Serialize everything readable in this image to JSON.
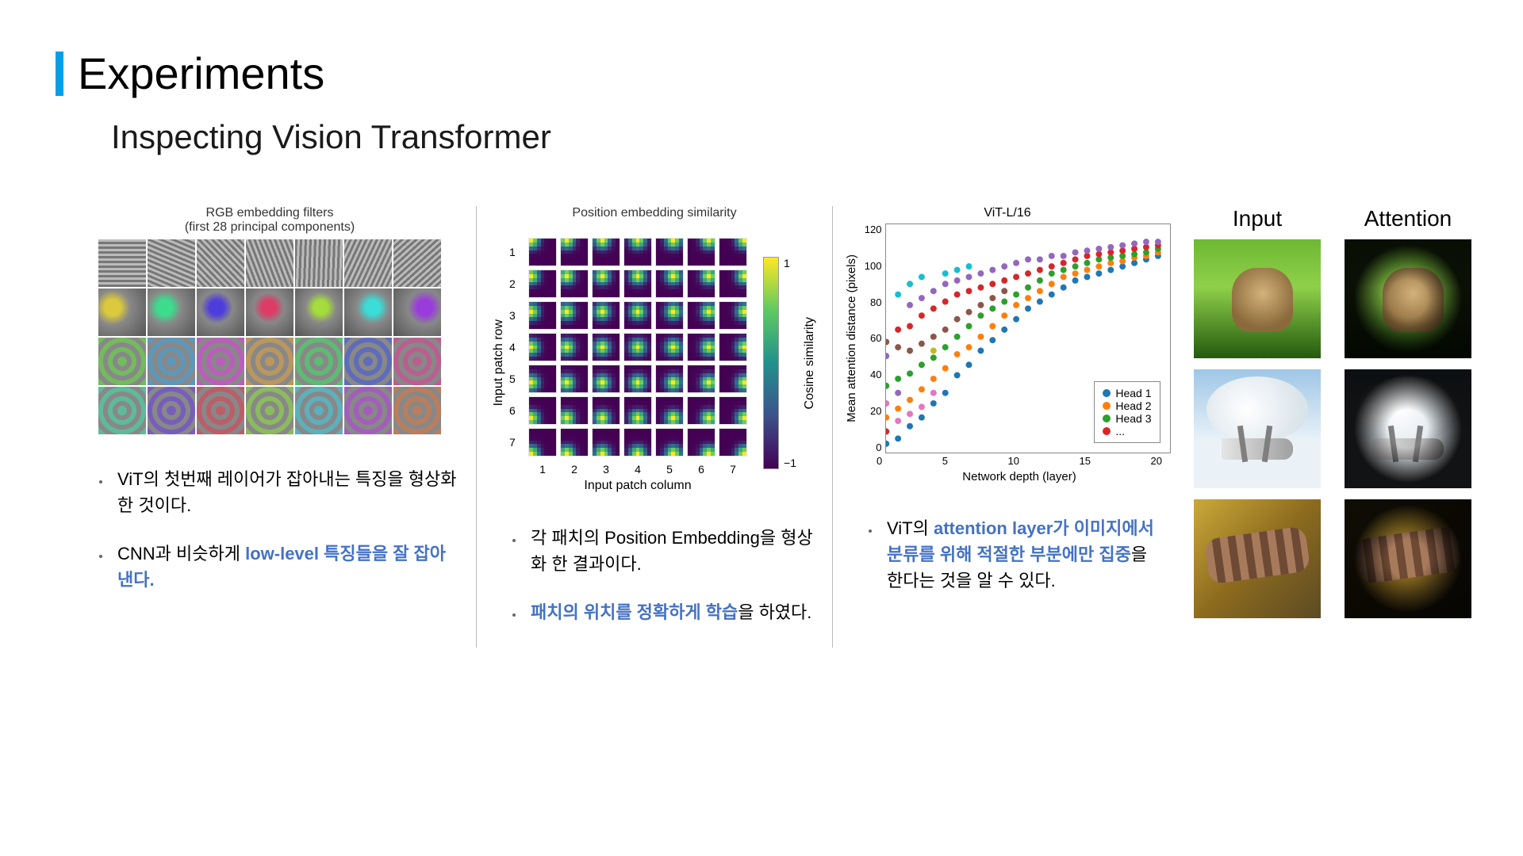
{
  "title": "Experiments",
  "subtitle": "Inspecting Vision Transformer",
  "accent_color": "#00a0e9",
  "highlight_color": "#4472c4",
  "col1": {
    "fig_title_line1": "RGB embedding filters",
    "fig_title_line2": "(first 28 principal components)",
    "grid": {
      "rows": 4,
      "cols": 7
    },
    "bullets": [
      {
        "prefix": "ViT의 첫번째 레이어가 잡아내는 특징을 형상화 한 것이다.",
        "highlight": ""
      },
      {
        "prefix": "CNN과 비슷하게 ",
        "highlight": "low-level 특징들을 잘 잡아낸다."
      }
    ]
  },
  "col2": {
    "fig_title": "Position embedding similarity",
    "axis_y_label": "Input patch row",
    "axis_x_label": "Input patch column",
    "axis_ticks": [
      "1",
      "2",
      "3",
      "4",
      "5",
      "6",
      "7"
    ],
    "cbar_label": "Cosine similarity",
    "cbar_top": "1",
    "cbar_bottom": "−1",
    "grid_size": 7,
    "bullets": [
      {
        "prefix": "각 패치의 Position Embedding을 형상화 한 결과이다.",
        "highlight": ""
      },
      {
        "highlight": "패치의 위치를 정확하게 학습",
        "suffix": "을 하였다."
      }
    ]
  },
  "col3": {
    "title": "ViT-L/16",
    "xlabel": "Network depth (layer)",
    "ylabel": "Mean attention distance (pixels)",
    "yticks": [
      "120",
      "100",
      "80",
      "60",
      "40",
      "20",
      "0"
    ],
    "xticks": [
      "0",
      "5",
      "10",
      "15",
      "20"
    ],
    "xlim": [
      0,
      24
    ],
    "ylim": [
      0,
      130
    ],
    "legend": [
      "Head 1",
      "Head 2",
      "Head 3",
      "..."
    ],
    "legend_colors": [
      "#1f77b4",
      "#ff7f0e",
      "#2ca02c",
      "#d62728"
    ],
    "points": [
      {
        "x": 0,
        "y": 5,
        "c": "#1f77b4"
      },
      {
        "x": 0,
        "y": 20,
        "c": "#ff7f0e"
      },
      {
        "x": 0,
        "y": 38,
        "c": "#2ca02c"
      },
      {
        "x": 0,
        "y": 12,
        "c": "#d62728"
      },
      {
        "x": 0,
        "y": 55,
        "c": "#9467bd"
      },
      {
        "x": 0,
        "y": 63,
        "c": "#8c564b"
      },
      {
        "x": 0,
        "y": 28,
        "c": "#e377c2"
      },
      {
        "x": 1,
        "y": 8,
        "c": "#1f77b4"
      },
      {
        "x": 1,
        "y": 25,
        "c": "#ff7f0e"
      },
      {
        "x": 1,
        "y": 42,
        "c": "#2ca02c"
      },
      {
        "x": 1,
        "y": 70,
        "c": "#d62728"
      },
      {
        "x": 1,
        "y": 34,
        "c": "#9467bd"
      },
      {
        "x": 1,
        "y": 60,
        "c": "#8c564b"
      },
      {
        "x": 1,
        "y": 18,
        "c": "#e377c2"
      },
      {
        "x": 1,
        "y": 90,
        "c": "#17becf"
      },
      {
        "x": 2,
        "y": 15,
        "c": "#1f77b4"
      },
      {
        "x": 2,
        "y": 30,
        "c": "#ff7f0e"
      },
      {
        "x": 2,
        "y": 45,
        "c": "#2ca02c"
      },
      {
        "x": 2,
        "y": 72,
        "c": "#d62728"
      },
      {
        "x": 2,
        "y": 84,
        "c": "#9467bd"
      },
      {
        "x": 2,
        "y": 58,
        "c": "#8c564b"
      },
      {
        "x": 2,
        "y": 22,
        "c": "#e377c2"
      },
      {
        "x": 2,
        "y": 96,
        "c": "#17becf"
      },
      {
        "x": 3,
        "y": 20,
        "c": "#1f77b4"
      },
      {
        "x": 3,
        "y": 36,
        "c": "#ff7f0e"
      },
      {
        "x": 3,
        "y": 50,
        "c": "#2ca02c"
      },
      {
        "x": 3,
        "y": 78,
        "c": "#d62728"
      },
      {
        "x": 3,
        "y": 88,
        "c": "#9467bd"
      },
      {
        "x": 3,
        "y": 62,
        "c": "#8c564b"
      },
      {
        "x": 3,
        "y": 26,
        "c": "#e377c2"
      },
      {
        "x": 3,
        "y": 100,
        "c": "#17becf"
      },
      {
        "x": 4,
        "y": 28,
        "c": "#1f77b4"
      },
      {
        "x": 4,
        "y": 42,
        "c": "#ff7f0e"
      },
      {
        "x": 4,
        "y": 54,
        "c": "#2ca02c"
      },
      {
        "x": 4,
        "y": 82,
        "c": "#d62728"
      },
      {
        "x": 4,
        "y": 92,
        "c": "#9467bd"
      },
      {
        "x": 4,
        "y": 66,
        "c": "#8c564b"
      },
      {
        "x": 4,
        "y": 34,
        "c": "#e377c2"
      },
      {
        "x": 4,
        "y": 58,
        "c": "#bcbd22"
      },
      {
        "x": 5,
        "y": 34,
        "c": "#1f77b4"
      },
      {
        "x": 5,
        "y": 48,
        "c": "#ff7f0e"
      },
      {
        "x": 5,
        "y": 60,
        "c": "#2ca02c"
      },
      {
        "x": 5,
        "y": 86,
        "c": "#d62728"
      },
      {
        "x": 5,
        "y": 96,
        "c": "#9467bd"
      },
      {
        "x": 5,
        "y": 70,
        "c": "#8c564b"
      },
      {
        "x": 5,
        "y": 102,
        "c": "#17becf"
      },
      {
        "x": 6,
        "y": 44,
        "c": "#1f77b4"
      },
      {
        "x": 6,
        "y": 56,
        "c": "#ff7f0e"
      },
      {
        "x": 6,
        "y": 66,
        "c": "#2ca02c"
      },
      {
        "x": 6,
        "y": 90,
        "c": "#d62728"
      },
      {
        "x": 6,
        "y": 98,
        "c": "#9467bd"
      },
      {
        "x": 6,
        "y": 76,
        "c": "#8c564b"
      },
      {
        "x": 6,
        "y": 104,
        "c": "#17becf"
      },
      {
        "x": 7,
        "y": 50,
        "c": "#1f77b4"
      },
      {
        "x": 7,
        "y": 60,
        "c": "#ff7f0e"
      },
      {
        "x": 7,
        "y": 72,
        "c": "#2ca02c"
      },
      {
        "x": 7,
        "y": 92,
        "c": "#d62728"
      },
      {
        "x": 7,
        "y": 100,
        "c": "#9467bd"
      },
      {
        "x": 7,
        "y": 80,
        "c": "#8c564b"
      },
      {
        "x": 7,
        "y": 106,
        "c": "#17becf"
      },
      {
        "x": 8,
        "y": 58,
        "c": "#1f77b4"
      },
      {
        "x": 8,
        "y": 66,
        "c": "#ff7f0e"
      },
      {
        "x": 8,
        "y": 78,
        "c": "#2ca02c"
      },
      {
        "x": 8,
        "y": 94,
        "c": "#d62728"
      },
      {
        "x": 8,
        "y": 102,
        "c": "#9467bd"
      },
      {
        "x": 8,
        "y": 84,
        "c": "#8c564b"
      },
      {
        "x": 9,
        "y": 64,
        "c": "#1f77b4"
      },
      {
        "x": 9,
        "y": 72,
        "c": "#ff7f0e"
      },
      {
        "x": 9,
        "y": 82,
        "c": "#2ca02c"
      },
      {
        "x": 9,
        "y": 96,
        "c": "#d62728"
      },
      {
        "x": 9,
        "y": 104,
        "c": "#9467bd"
      },
      {
        "x": 9,
        "y": 88,
        "c": "#8c564b"
      },
      {
        "x": 10,
        "y": 70,
        "c": "#1f77b4"
      },
      {
        "x": 10,
        "y": 78,
        "c": "#ff7f0e"
      },
      {
        "x": 10,
        "y": 86,
        "c": "#2ca02c"
      },
      {
        "x": 10,
        "y": 98,
        "c": "#d62728"
      },
      {
        "x": 10,
        "y": 106,
        "c": "#9467bd"
      },
      {
        "x": 10,
        "y": 92,
        "c": "#8c564b"
      },
      {
        "x": 11,
        "y": 76,
        "c": "#1f77b4"
      },
      {
        "x": 11,
        "y": 84,
        "c": "#ff7f0e"
      },
      {
        "x": 11,
        "y": 90,
        "c": "#2ca02c"
      },
      {
        "x": 11,
        "y": 100,
        "c": "#d62728"
      },
      {
        "x": 11,
        "y": 108,
        "c": "#9467bd"
      },
      {
        "x": 12,
        "y": 82,
        "c": "#1f77b4"
      },
      {
        "x": 12,
        "y": 88,
        "c": "#ff7f0e"
      },
      {
        "x": 12,
        "y": 94,
        "c": "#2ca02c"
      },
      {
        "x": 12,
        "y": 102,
        "c": "#d62728"
      },
      {
        "x": 12,
        "y": 110,
        "c": "#9467bd"
      },
      {
        "x": 13,
        "y": 86,
        "c": "#1f77b4"
      },
      {
        "x": 13,
        "y": 92,
        "c": "#ff7f0e"
      },
      {
        "x": 13,
        "y": 98,
        "c": "#2ca02c"
      },
      {
        "x": 13,
        "y": 104,
        "c": "#d62728"
      },
      {
        "x": 13,
        "y": 110,
        "c": "#9467bd"
      },
      {
        "x": 14,
        "y": 90,
        "c": "#1f77b4"
      },
      {
        "x": 14,
        "y": 96,
        "c": "#ff7f0e"
      },
      {
        "x": 14,
        "y": 102,
        "c": "#2ca02c"
      },
      {
        "x": 14,
        "y": 106,
        "c": "#d62728"
      },
      {
        "x": 14,
        "y": 112,
        "c": "#9467bd"
      },
      {
        "x": 15,
        "y": 94,
        "c": "#1f77b4"
      },
      {
        "x": 15,
        "y": 100,
        "c": "#ff7f0e"
      },
      {
        "x": 15,
        "y": 104,
        "c": "#2ca02c"
      },
      {
        "x": 15,
        "y": 108,
        "c": "#d62728"
      },
      {
        "x": 15,
        "y": 112,
        "c": "#9467bd"
      },
      {
        "x": 16,
        "y": 98,
        "c": "#1f77b4"
      },
      {
        "x": 16,
        "y": 102,
        "c": "#ff7f0e"
      },
      {
        "x": 16,
        "y": 106,
        "c": "#2ca02c"
      },
      {
        "x": 16,
        "y": 110,
        "c": "#d62728"
      },
      {
        "x": 16,
        "y": 114,
        "c": "#9467bd"
      },
      {
        "x": 17,
        "y": 100,
        "c": "#1f77b4"
      },
      {
        "x": 17,
        "y": 104,
        "c": "#ff7f0e"
      },
      {
        "x": 17,
        "y": 108,
        "c": "#2ca02c"
      },
      {
        "x": 17,
        "y": 112,
        "c": "#d62728"
      },
      {
        "x": 17,
        "y": 115,
        "c": "#9467bd"
      },
      {
        "x": 18,
        "y": 102,
        "c": "#1f77b4"
      },
      {
        "x": 18,
        "y": 106,
        "c": "#ff7f0e"
      },
      {
        "x": 18,
        "y": 110,
        "c": "#2ca02c"
      },
      {
        "x": 18,
        "y": 113,
        "c": "#d62728"
      },
      {
        "x": 18,
        "y": 116,
        "c": "#9467bd"
      },
      {
        "x": 19,
        "y": 104,
        "c": "#1f77b4"
      },
      {
        "x": 19,
        "y": 108,
        "c": "#ff7f0e"
      },
      {
        "x": 19,
        "y": 111,
        "c": "#2ca02c"
      },
      {
        "x": 19,
        "y": 114,
        "c": "#d62728"
      },
      {
        "x": 19,
        "y": 117,
        "c": "#9467bd"
      },
      {
        "x": 20,
        "y": 106,
        "c": "#1f77b4"
      },
      {
        "x": 20,
        "y": 109,
        "c": "#ff7f0e"
      },
      {
        "x": 20,
        "y": 112,
        "c": "#2ca02c"
      },
      {
        "x": 20,
        "y": 115,
        "c": "#d62728"
      },
      {
        "x": 20,
        "y": 118,
        "c": "#9467bd"
      },
      {
        "x": 21,
        "y": 108,
        "c": "#1f77b4"
      },
      {
        "x": 21,
        "y": 111,
        "c": "#ff7f0e"
      },
      {
        "x": 21,
        "y": 113,
        "c": "#2ca02c"
      },
      {
        "x": 21,
        "y": 116,
        "c": "#d62728"
      },
      {
        "x": 21,
        "y": 119,
        "c": "#9467bd"
      },
      {
        "x": 22,
        "y": 110,
        "c": "#1f77b4"
      },
      {
        "x": 22,
        "y": 112,
        "c": "#ff7f0e"
      },
      {
        "x": 22,
        "y": 114,
        "c": "#2ca02c"
      },
      {
        "x": 22,
        "y": 117,
        "c": "#d62728"
      },
      {
        "x": 22,
        "y": 120,
        "c": "#9467bd"
      },
      {
        "x": 23,
        "y": 112,
        "c": "#1f77b4"
      },
      {
        "x": 23,
        "y": 114,
        "c": "#ff7f0e"
      },
      {
        "x": 23,
        "y": 116,
        "c": "#2ca02c"
      },
      {
        "x": 23,
        "y": 118,
        "c": "#d62728"
      },
      {
        "x": 23,
        "y": 120,
        "c": "#9467bd"
      }
    ],
    "bullet_prefix": "ViT의 ",
    "bullet_highlight": "attention layer가 이미지에서 분류를 위해 적절한 부분에만 집중",
    "bullet_suffix": "을 한다는 것을 알 수 있다."
  },
  "col4": {
    "head_input": "Input",
    "head_attention": "Attention"
  }
}
